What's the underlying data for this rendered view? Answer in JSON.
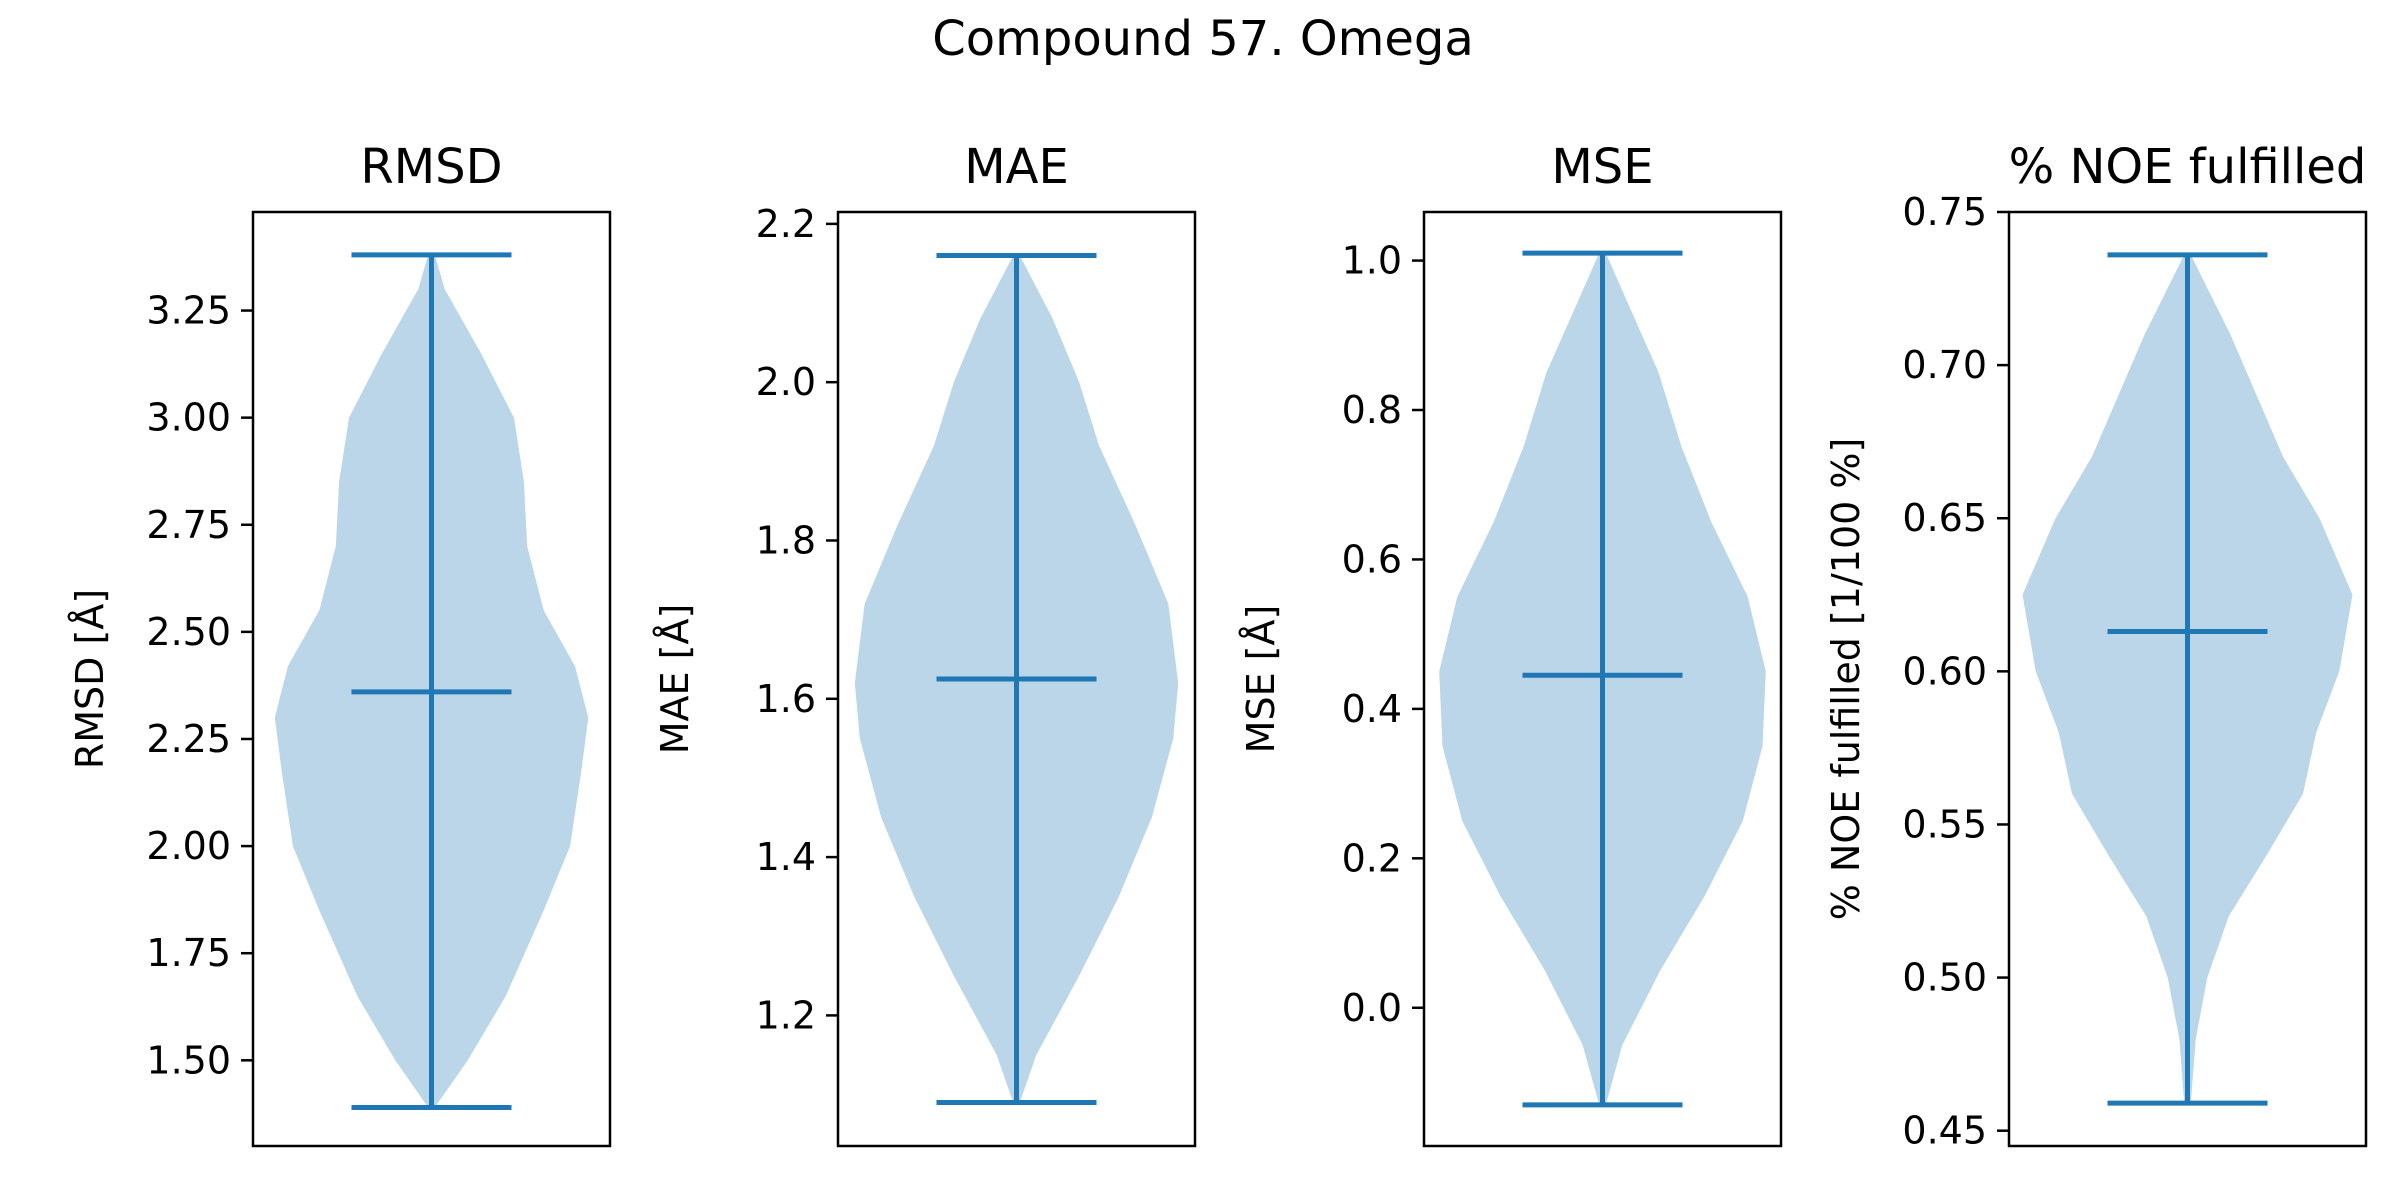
{
  "figure": {
    "suptitle": "Compound 57. Omega",
    "violin_color": "#1f77b4",
    "violin_fill_opacity": 0.3
  },
  "chart_data": [
    {
      "type": "violin",
      "title": "RMSD",
      "ylabel": "RMSD [$\\AA$]",
      "ylabel_display": "RMSD [Å]",
      "ylim": [
        1.3,
        3.48
      ],
      "yticks": [
        1.5,
        1.75,
        2.0,
        2.25,
        2.5,
        2.75,
        3.0,
        3.25
      ],
      "ytick_labels": [
        "1.50",
        "1.75",
        "2.00",
        "2.25",
        "2.50",
        "2.75",
        "3.00",
        "3.25"
      ],
      "min": 1.39,
      "max": 3.38,
      "mean": 2.36,
      "density_profile": [
        {
          "y": 1.39,
          "w": 0.02
        },
        {
          "y": 1.5,
          "w": 0.22
        },
        {
          "y": 1.65,
          "w": 0.45
        },
        {
          "y": 1.85,
          "w": 0.68
        },
        {
          "y": 2.0,
          "w": 0.84
        },
        {
          "y": 2.18,
          "w": 0.91
        },
        {
          "y": 2.3,
          "w": 0.95
        },
        {
          "y": 2.42,
          "w": 0.87
        },
        {
          "y": 2.55,
          "w": 0.68
        },
        {
          "y": 2.7,
          "w": 0.58
        },
        {
          "y": 2.85,
          "w": 0.56
        },
        {
          "y": 3.0,
          "w": 0.5
        },
        {
          "y": 3.15,
          "w": 0.3
        },
        {
          "y": 3.3,
          "w": 0.08
        },
        {
          "y": 3.38,
          "w": 0.02
        }
      ]
    },
    {
      "type": "violin",
      "title": "MAE",
      "ylabel": "MAE [$\\AA$]",
      "ylabel_display": "MAE [Å]",
      "ylim": [
        1.035,
        2.215
      ],
      "yticks": [
        1.2,
        1.4,
        1.6,
        1.8,
        2.0,
        2.2
      ],
      "ytick_labels": [
        "1.2",
        "1.4",
        "1.6",
        "1.8",
        "2.0",
        "2.2"
      ],
      "min": 1.09,
      "max": 2.16,
      "mean": 1.625,
      "density_profile": [
        {
          "y": 1.09,
          "w": 0.02
        },
        {
          "y": 1.15,
          "w": 0.12
        },
        {
          "y": 1.25,
          "w": 0.38
        },
        {
          "y": 1.35,
          "w": 0.62
        },
        {
          "y": 1.45,
          "w": 0.82
        },
        {
          "y": 1.55,
          "w": 0.95
        },
        {
          "y": 1.62,
          "w": 0.98
        },
        {
          "y": 1.72,
          "w": 0.92
        },
        {
          "y": 1.82,
          "w": 0.72
        },
        {
          "y": 1.92,
          "w": 0.5
        },
        {
          "y": 2.0,
          "w": 0.38
        },
        {
          "y": 2.08,
          "w": 0.22
        },
        {
          "y": 2.16,
          "w": 0.02
        }
      ]
    },
    {
      "type": "violin",
      "title": "MSE",
      "ylabel": "MSE [$\\AA$]",
      "ylabel_display": "MSE [Å]",
      "ylim": [
        -0.185,
        1.065
      ],
      "yticks": [
        0.0,
        0.2,
        0.4,
        0.6,
        0.8,
        1.0
      ],
      "ytick_labels": [
        "0.0",
        "0.2",
        "0.4",
        "0.6",
        "0.8",
        "1.0"
      ],
      "min": -0.13,
      "max": 1.01,
      "mean": 0.445,
      "density_profile": [
        {
          "y": -0.13,
          "w": 0.02
        },
        {
          "y": -0.05,
          "w": 0.12
        },
        {
          "y": 0.05,
          "w": 0.35
        },
        {
          "y": 0.15,
          "w": 0.62
        },
        {
          "y": 0.25,
          "w": 0.85
        },
        {
          "y": 0.35,
          "w": 0.97
        },
        {
          "y": 0.45,
          "w": 0.99
        },
        {
          "y": 0.55,
          "w": 0.88
        },
        {
          "y": 0.65,
          "w": 0.66
        },
        {
          "y": 0.75,
          "w": 0.48
        },
        {
          "y": 0.85,
          "w": 0.34
        },
        {
          "y": 0.93,
          "w": 0.18
        },
        {
          "y": 1.01,
          "w": 0.02
        }
      ]
    },
    {
      "type": "violin",
      "title": "% NOE fulfilled",
      "ylabel": "% NOE fulfilled [1/100 %]",
      "ylabel_display": "% NOE fulfilled [1/100 %]",
      "ylim": [
        0.445,
        0.75
      ],
      "yticks": [
        0.45,
        0.5,
        0.55,
        0.6,
        0.65,
        0.7,
        0.75
      ],
      "ytick_labels": [
        "0.45",
        "0.50",
        "0.55",
        "0.60",
        "0.65",
        "0.70",
        "0.75"
      ],
      "min": 0.459,
      "max": 0.736,
      "mean": 0.613,
      "density_profile": [
        {
          "y": 0.459,
          "w": 0.02
        },
        {
          "y": 0.48,
          "w": 0.05
        },
        {
          "y": 0.5,
          "w": 0.12
        },
        {
          "y": 0.52,
          "w": 0.25
        },
        {
          "y": 0.54,
          "w": 0.48
        },
        {
          "y": 0.56,
          "w": 0.7
        },
        {
          "y": 0.58,
          "w": 0.78
        },
        {
          "y": 0.6,
          "w": 0.92
        },
        {
          "y": 0.625,
          "w": 1.0
        },
        {
          "y": 0.65,
          "w": 0.8
        },
        {
          "y": 0.67,
          "w": 0.58
        },
        {
          "y": 0.69,
          "w": 0.42
        },
        {
          "y": 0.71,
          "w": 0.26
        },
        {
          "y": 0.736,
          "w": 0.02
        }
      ]
    }
  ]
}
